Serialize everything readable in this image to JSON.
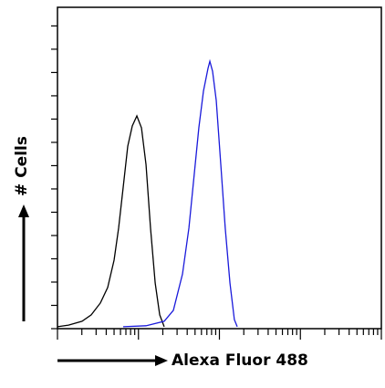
{
  "chart_data": {
    "type": "line",
    "x_label": "Alexa Fluor 488",
    "y_label": "# Cells",
    "xlog": true,
    "xlim": [
      1,
      10000
    ],
    "ylim": [
      0,
      100
    ],
    "series": [
      {
        "color": "#000000",
        "x": [
          1,
          1.37,
          2.01,
          2.61,
          3.39,
          4.17,
          5.0,
          5.69,
          6.48,
          7.38,
          8.4,
          9.56,
          10.9,
          12.4,
          14.1,
          16.1,
          18.3,
          20.8
        ],
        "values": [
          0.6,
          1.1,
          2.3,
          4.3,
          8.0,
          12.8,
          21.3,
          31.3,
          44.0,
          56.8,
          63.1,
          66.2,
          62.5,
          51.1,
          31.3,
          14.2,
          4.3,
          0.6
        ]
      },
      {
        "color": "#1a1adb",
        "x": [
          6.48,
          12.4,
          20.8,
          27.0,
          35.0,
          42.0,
          49.0,
          55.7,
          63.5,
          72.3,
          76.2,
          82.3,
          91.4,
          104,
          118,
          135,
          153,
          166
        ],
        "values": [
          0.6,
          0.9,
          2.3,
          5.7,
          17.0,
          31.3,
          48.3,
          62.5,
          73.9,
          81.0,
          83.2,
          80.1,
          71.0,
          51.1,
          31.3,
          14.2,
          2.8,
          0.6
        ]
      }
    ]
  }
}
